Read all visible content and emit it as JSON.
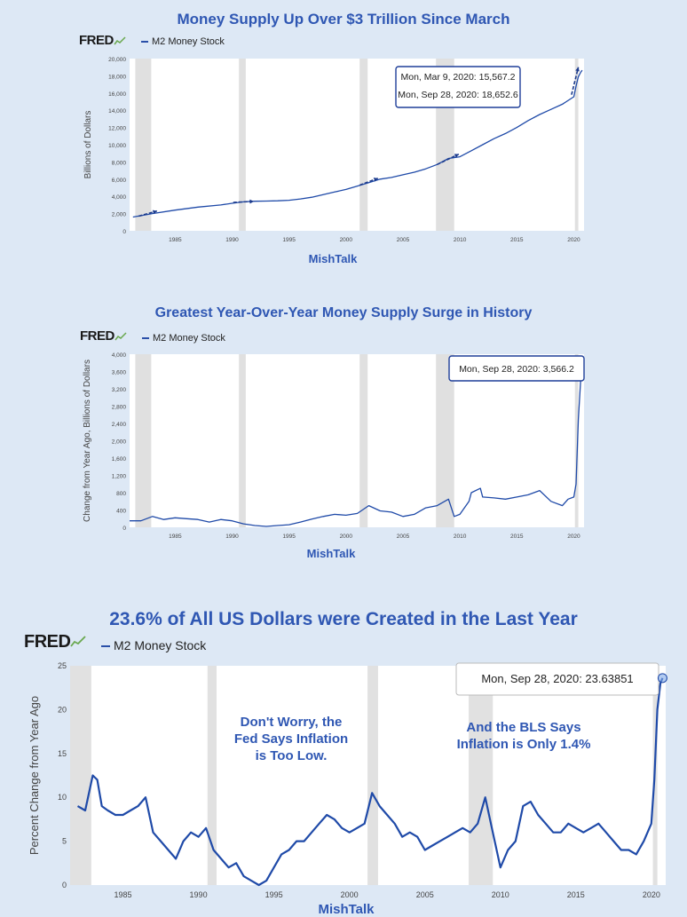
{
  "colors": {
    "background": "#dde8f5",
    "title": "#2f57b3",
    "line": "#1f4aa8",
    "recession": "#dddddd",
    "annotation": "#2f57b3"
  },
  "brand": "FRED",
  "chart_data": [
    {
      "type": "line",
      "title": "Money Supply Up Over $3 Trillion Since March",
      "series": [
        {
          "name": "M2 Money Stock"
        }
      ],
      "ylabel": "Billions of Dollars",
      "xlabel": "MishTalk",
      "ylim": [
        0,
        20000
      ],
      "yticks": [
        "0",
        "2,000",
        "4,000",
        "6,000",
        "8,000",
        "10,000",
        "12,000",
        "14,000",
        "16,000",
        "18,000",
        "20,000"
      ],
      "xticks": [
        "1985",
        "1990",
        "1995",
        "2000",
        "2005",
        "2010",
        "2015",
        "2020"
      ],
      "x": [
        1981.3,
        1983,
        1985,
        1987,
        1989,
        1990,
        1991,
        1992,
        1993,
        1994,
        1995,
        1996,
        1997,
        1998,
        1999,
        2000,
        2001,
        2002,
        2003,
        2004,
        2005,
        2006,
        2007,
        2008,
        2009,
        2010,
        2011,
        2012,
        2013,
        2014,
        2015,
        2016,
        2017,
        2018,
        2019,
        2020.0,
        2020.2,
        2020.4,
        2020.6,
        2020.74
      ],
      "values": [
        1600,
        2000,
        2400,
        2750,
        3000,
        3200,
        3360,
        3430,
        3450,
        3480,
        3550,
        3700,
        3900,
        4200,
        4500,
        4800,
        5200,
        5600,
        6000,
        6200,
        6500,
        6800,
        7200,
        7700,
        8400,
        8600,
        9300,
        10000,
        10700,
        11300,
        12000,
        12800,
        13500,
        14100,
        14700,
        15567,
        16800,
        17900,
        18400,
        18653
      ],
      "recessions": [
        [
          1981.5,
          1982.9
        ],
        [
          1990.6,
          1991.2
        ],
        [
          2001.2,
          2001.9
        ],
        [
          2007.9,
          2009.5
        ],
        [
          2020.1,
          2020.4
        ]
      ],
      "tooltips": [
        "Mon, Mar 9, 2020: 15,567.2",
        "Mon, Sep 28, 2020: 18,652.6"
      ],
      "arrows": [
        [
          1981.8,
          1700,
          1983.4,
          2300
        ],
        [
          1990.1,
          3300,
          1991.9,
          3420
        ],
        [
          2001.2,
          5300,
          2002.8,
          6100
        ],
        [
          2008.0,
          7700,
          2009.9,
          8900
        ],
        [
          2019.8,
          15800,
          2020.4,
          19000
        ]
      ]
    },
    {
      "type": "line",
      "title": "Greatest Year-Over-Year Money Supply Surge in History",
      "series": [
        {
          "name": "M2 Money Stock"
        }
      ],
      "ylabel": "Change from Year Ago, Billions of Dollars",
      "xlabel": "MishTalk",
      "ylim": [
        0,
        4000
      ],
      "yticks": [
        "0",
        "400",
        "800",
        "1,200",
        "1,600",
        "2,000",
        "2,400",
        "2,800",
        "3,200",
        "3,600",
        "4,000"
      ],
      "xticks": [
        "1985",
        "1990",
        "1995",
        "2000",
        "2005",
        "2010",
        "2015",
        "2020"
      ],
      "x": [
        1981.0,
        1982,
        1983,
        1984,
        1985,
        1986,
        1987,
        1988,
        1989,
        1990,
        1991,
        1992,
        1993,
        1994,
        1995,
        1996,
        1997,
        1998,
        1999,
        2000,
        2001,
        2002,
        2003,
        2004,
        2005,
        2006,
        2007,
        2008,
        2009,
        2009.5,
        2010,
        2010.8,
        2011,
        2011.8,
        2012,
        2013,
        2014,
        2015,
        2016,
        2017,
        2018,
        2019,
        2019.5,
        2020.0,
        2020.2,
        2020.4,
        2020.6,
        2020.74
      ],
      "values": [
        150,
        150,
        250,
        180,
        220,
        200,
        180,
        120,
        180,
        150,
        80,
        40,
        20,
        40,
        60,
        120,
        190,
        250,
        300,
        280,
        320,
        500,
        380,
        350,
        250,
        300,
        450,
        500,
        650,
        250,
        300,
        600,
        800,
        900,
        700,
        680,
        650,
        700,
        750,
        850,
        600,
        500,
        650,
        700,
        1000,
        2500,
        3400,
        3566
      ],
      "recessions": [
        [
          1981.5,
          1982.9
        ],
        [
          1990.6,
          1991.2
        ],
        [
          2001.2,
          2001.9
        ],
        [
          2007.9,
          2009.5
        ],
        [
          2020.1,
          2020.4
        ]
      ],
      "tooltips": [
        "Mon, Sep 28, 2020: 3,566.2"
      ]
    },
    {
      "type": "line",
      "title": "23.6% of All US Dollars were Created in the Last Year",
      "series": [
        {
          "name": "M2 Money Stock"
        }
      ],
      "ylabel": "Percent Change from Year Ago",
      "xlabel": "MishTalk",
      "ylim": [
        0,
        25
      ],
      "yticks": [
        "0",
        "5",
        "10",
        "15",
        "20",
        "25"
      ],
      "xticks": [
        "1985",
        "1990",
        "1995",
        "2000",
        "2005",
        "2010",
        "2015",
        "2020"
      ],
      "x": [
        1982.0,
        1982.5,
        1983.0,
        1983.3,
        1983.6,
        1984.0,
        1984.5,
        1985.0,
        1985.5,
        1986.0,
        1986.5,
        1987.0,
        1987.5,
        1988.0,
        1988.5,
        1989.0,
        1989.5,
        1990.0,
        1990.5,
        1991.0,
        1991.5,
        1992.0,
        1992.5,
        1993.0,
        1993.5,
        1994.0,
        1994.5,
        1995.0,
        1995.5,
        1996.0,
        1996.5,
        1997.0,
        1997.5,
        1998.0,
        1998.5,
        1999.0,
        1999.5,
        2000.0,
        2000.5,
        2001.0,
        2001.5,
        2002.0,
        2002.5,
        2003.0,
        2003.5,
        2004.0,
        2004.5,
        2005.0,
        2005.5,
        2006.0,
        2006.5,
        2007.0,
        2007.5,
        2008.0,
        2008.5,
        2009.0,
        2009.5,
        2010.0,
        2010.5,
        2011.0,
        2011.5,
        2012.0,
        2012.5,
        2013.0,
        2013.5,
        2014.0,
        2014.5,
        2015.0,
        2015.5,
        2016.0,
        2016.5,
        2017.0,
        2017.5,
        2018.0,
        2018.5,
        2019.0,
        2019.5,
        2020.0,
        2020.2,
        2020.4,
        2020.6,
        2020.74
      ],
      "values": [
        9,
        8.5,
        12.5,
        12,
        9,
        8.5,
        8,
        8,
        8.5,
        9,
        10,
        6,
        5,
        4,
        3,
        5,
        6,
        5.5,
        6.5,
        4,
        3,
        2,
        2.5,
        1,
        0.5,
        0,
        0.5,
        2,
        3.5,
        4,
        5,
        5,
        6,
        7,
        8,
        7.5,
        6.5,
        6,
        6.5,
        7,
        10.5,
        9,
        8,
        7,
        5.5,
        6,
        5.5,
        4,
        4.5,
        5,
        5.5,
        6,
        6.5,
        6,
        7,
        10,
        6,
        2,
        4,
        5,
        9,
        9.5,
        8,
        7,
        6,
        6,
        7,
        6.5,
        6,
        6.5,
        7,
        6,
        5,
        4,
        4,
        3.5,
        5,
        7,
        12,
        20,
        23,
        23.6
      ],
      "recessions": [
        [
          1981.5,
          1982.9
        ],
        [
          1990.6,
          1991.2
        ],
        [
          2001.2,
          2001.9
        ],
        [
          2007.9,
          2009.5
        ],
        [
          2020.1,
          2020.4
        ]
      ],
      "tooltips": [
        "Mon, Sep 28, 2020: 23.63851"
      ],
      "annotations": [
        {
          "text": "Don't Worry, the\nFed Says Inflation\nis Too Low."
        },
        {
          "text": "And the BLS Says\nInflation is Only 1.4%"
        }
      ]
    }
  ]
}
